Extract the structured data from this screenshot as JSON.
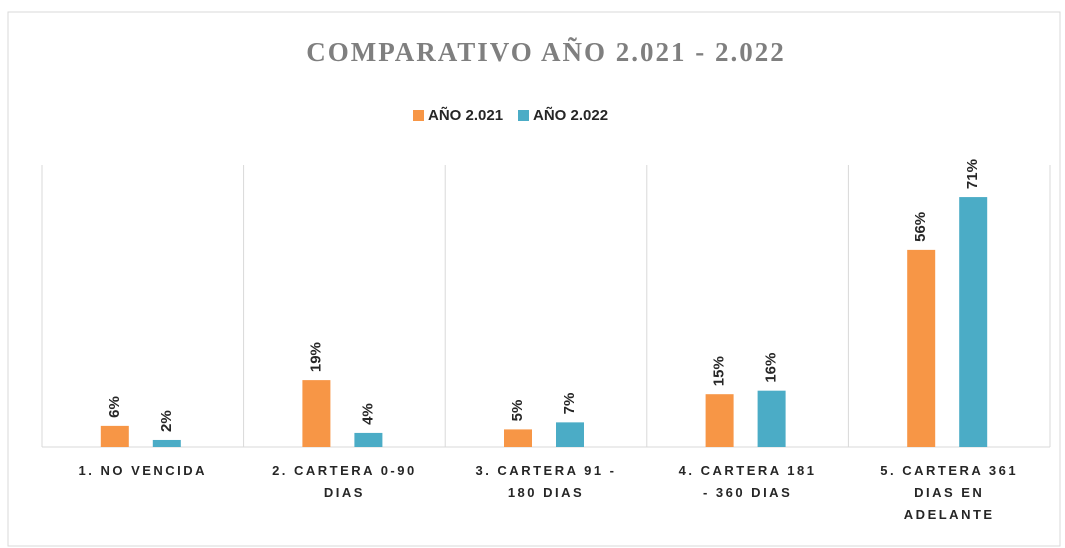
{
  "chart_data": {
    "type": "bar",
    "title": "COMPARATIVO AÑO 2.021 - 2.022",
    "categories": [
      "1. NO VENCIDA",
      "2. CARTERA 0-90 DIAS",
      "3. CARTERA 91 - 180 DIAS",
      "4. CARTERA 181 - 360 DIAS",
      "5. CARTERA 361 DIAS EN ADELANTE"
    ],
    "series": [
      {
        "name": "AÑO 2.021",
        "color": "#f79646",
        "values": [
          6,
          19,
          5,
          15,
          56
        ],
        "value_labels": [
          "6%",
          "19%",
          "5%",
          "15%",
          "56%"
        ]
      },
      {
        "name": "AÑO 2.022",
        "color": "#4bacc6",
        "values": [
          2,
          4,
          7,
          16,
          71
        ],
        "value_labels": [
          "2%",
          "4%",
          "7%",
          "16%",
          "71%"
        ]
      }
    ],
    "legend": "top"
  }
}
